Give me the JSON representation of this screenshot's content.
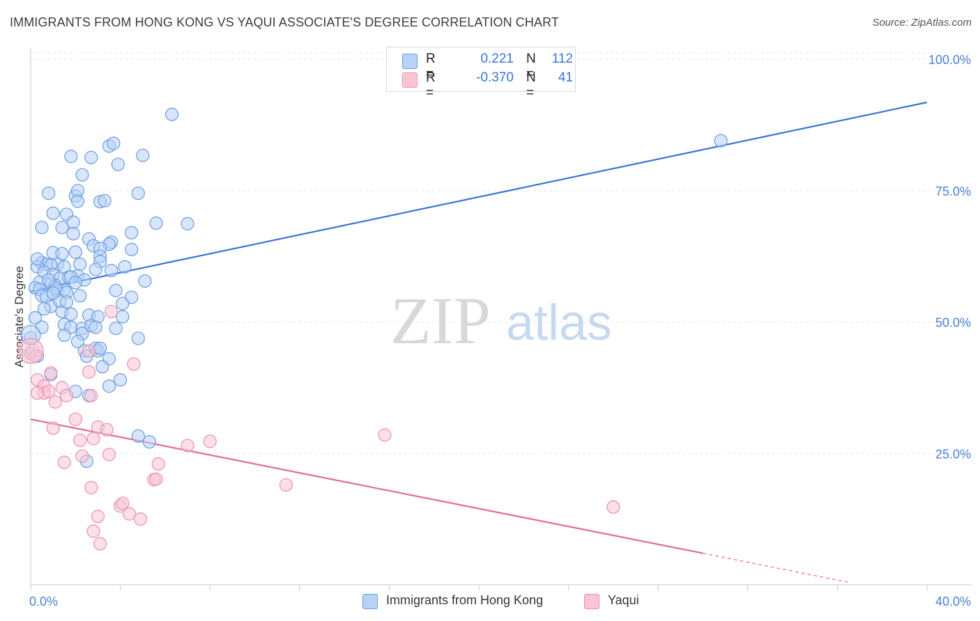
{
  "title": "IMMIGRANTS FROM HONG KONG VS YAQUI ASSOCIATE'S DEGREE CORRELATION CHART",
  "source": "Source: ZipAtlas.com",
  "watermark": {
    "zip": "ZIP",
    "atlas": "atlas"
  },
  "legend_top": {
    "rows": [
      {
        "r_label": "R =",
        "r_value": "0.221",
        "n_label": "N =",
        "n_value": "112"
      },
      {
        "r_label": "R =",
        "r_value": "-0.370",
        "n_label": "N =",
        "n_value": "41"
      }
    ]
  },
  "legend_bottom": [
    {
      "label": "Immigrants from Hong Kong"
    },
    {
      "label": "Yaqui"
    }
  ],
  "colors": {
    "blue_fill": "#b7d2f5",
    "blue_stroke": "#6b9be0",
    "blue_line": "#3a74d2",
    "pink_fill": "#f9c5d5",
    "pink_stroke": "#ea8fae",
    "pink_line": "#e2699a",
    "tick_label": "#4a7fd4",
    "grid": "#e3e3e3"
  },
  "chart_data": {
    "type": "scatter",
    "title": "IMMIGRANTS FROM HONG KONG VS YAQUI ASSOCIATE'S DEGREE CORRELATION CHART",
    "xlabel": "",
    "ylabel": "Associate's Degree",
    "xlim": [
      0,
      40
    ],
    "ylim": [
      0,
      102
    ],
    "x_tick_labels": [
      {
        "value": 0,
        "label": "0.0%"
      },
      {
        "value": 40,
        "label": "40.0%"
      }
    ],
    "y_tick_labels": [
      {
        "value": 25,
        "label": "25.0%"
      },
      {
        "value": 50,
        "label": "50.0%"
      },
      {
        "value": 75,
        "label": "75.0%"
      },
      {
        "value": 100,
        "label": "100.0%"
      }
    ],
    "x_minor_ticks": [
      0,
      4,
      8,
      12,
      16,
      20,
      24,
      28,
      32,
      36,
      40
    ],
    "grid": true,
    "series": [
      {
        "name": "Immigrants from Hong Kong",
        "r": 0.221,
        "n": 112,
        "trend": {
          "x0": 0,
          "y0": 55.8,
          "x1": 40,
          "y1": 91.8
        },
        "points": [
          [
            6.3,
            89.5
          ],
          [
            1.8,
            81.5
          ],
          [
            2.7,
            81.3
          ],
          [
            3.5,
            83.5
          ],
          [
            3.7,
            84.0
          ],
          [
            5.0,
            81.7
          ],
          [
            3.9,
            80.0
          ],
          [
            2.3,
            78.0
          ],
          [
            0.8,
            74.5
          ],
          [
            2.0,
            74.0
          ],
          [
            2.1,
            75.0
          ],
          [
            4.8,
            74.5
          ],
          [
            2.1,
            73.0
          ],
          [
            3.1,
            72.9
          ],
          [
            3.3,
            73.1
          ],
          [
            1.0,
            70.7
          ],
          [
            1.6,
            70.5
          ],
          [
            0.5,
            68.0
          ],
          [
            1.4,
            68.0
          ],
          [
            1.9,
            69.0
          ],
          [
            5.6,
            68.8
          ],
          [
            7.0,
            68.7
          ],
          [
            1.9,
            66.8
          ],
          [
            4.5,
            67.0
          ],
          [
            2.6,
            65.8
          ],
          [
            3.6,
            65.2
          ],
          [
            3.5,
            64.8
          ],
          [
            2.8,
            64.5
          ],
          [
            3.1,
            64.0
          ],
          [
            4.5,
            63.8
          ],
          [
            1.0,
            63.2
          ],
          [
            1.4,
            63.0
          ],
          [
            2.0,
            63.3
          ],
          [
            3.1,
            62.5
          ],
          [
            1.2,
            61.0
          ],
          [
            3.1,
            61.5
          ],
          [
            0.5,
            61.3
          ],
          [
            0.7,
            61.0
          ],
          [
            0.3,
            60.5
          ],
          [
            0.9,
            60.8
          ],
          [
            1.5,
            60.5
          ],
          [
            2.2,
            61.0
          ],
          [
            3.6,
            59.8
          ],
          [
            0.6,
            59.5
          ],
          [
            1.0,
            59.0
          ],
          [
            2.1,
            58.8
          ],
          [
            1.3,
            58.3
          ],
          [
            1.7,
            58.5
          ],
          [
            1.8,
            58.6
          ],
          [
            2.4,
            58.0
          ],
          [
            5.1,
            57.8
          ],
          [
            0.4,
            57.6
          ],
          [
            0.9,
            57.2
          ],
          [
            1.1,
            57.0
          ],
          [
            0.2,
            56.5
          ],
          [
            0.4,
            56.2
          ],
          [
            1.2,
            56.0
          ],
          [
            1.5,
            56.1
          ],
          [
            1.6,
            55.6
          ],
          [
            0.5,
            55.0
          ],
          [
            0.7,
            54.8
          ],
          [
            4.5,
            54.7
          ],
          [
            0.9,
            53.0
          ],
          [
            4.1,
            53.5
          ],
          [
            1.4,
            52.0
          ],
          [
            1.8,
            51.5
          ],
          [
            2.6,
            51.3
          ],
          [
            3.0,
            51.0
          ],
          [
            4.1,
            51.0
          ],
          [
            0.2,
            50.8
          ],
          [
            1.5,
            49.5
          ],
          [
            1.8,
            49.0
          ],
          [
            2.3,
            48.8
          ],
          [
            2.7,
            49.3
          ],
          [
            2.9,
            49.0
          ],
          [
            0.5,
            49.0
          ],
          [
            3.8,
            48.8
          ],
          [
            1.5,
            47.5
          ],
          [
            2.3,
            47.8
          ],
          [
            4.8,
            46.9
          ],
          [
            2.1,
            46.3
          ],
          [
            0.0,
            47.0
          ],
          [
            2.9,
            45.0
          ],
          [
            3.0,
            44.5
          ],
          [
            3.1,
            45.0
          ],
          [
            2.4,
            44.5
          ],
          [
            2.5,
            43.5
          ],
          [
            3.5,
            43.0
          ],
          [
            3.2,
            41.5
          ],
          [
            0.9,
            40.0
          ],
          [
            4.0,
            39.0
          ],
          [
            3.5,
            37.8
          ],
          [
            2.0,
            36.8
          ],
          [
            2.6,
            36.0
          ],
          [
            0.0,
            44.0
          ],
          [
            0.3,
            43.5
          ],
          [
            4.8,
            28.3
          ],
          [
            5.3,
            27.2
          ],
          [
            2.5,
            23.5
          ],
          [
            30.8,
            84.5
          ],
          [
            1.1,
            56.5
          ],
          [
            0.6,
            52.5
          ],
          [
            2.2,
            55.0
          ],
          [
            3.8,
            56.0
          ],
          [
            1.3,
            54.0
          ],
          [
            0.8,
            58.0
          ],
          [
            2.9,
            60.0
          ],
          [
            1.6,
            53.8
          ],
          [
            4.2,
            60.5
          ],
          [
            0.3,
            62.0
          ],
          [
            2.0,
            57.5
          ],
          [
            1.0,
            55.5
          ]
        ]
      },
      {
        "name": "Yaqui",
        "r": -0.37,
        "n": 41,
        "trend": {
          "x0": 0,
          "y0": 31.5,
          "x1": 30.0,
          "y1": 6.0,
          "dash_to_x": 36.5
        },
        "points": [
          [
            0.1,
            44.5
          ],
          [
            0.2,
            43.5
          ],
          [
            2.6,
            44.5
          ],
          [
            3.6,
            52.0
          ],
          [
            4.6,
            42.0
          ],
          [
            2.6,
            40.5
          ],
          [
            0.9,
            40.3
          ],
          [
            0.3,
            39.0
          ],
          [
            0.6,
            37.8
          ],
          [
            1.4,
            37.5
          ],
          [
            0.6,
            36.5
          ],
          [
            0.8,
            36.8
          ],
          [
            1.6,
            36.0
          ],
          [
            2.7,
            36.0
          ],
          [
            0.3,
            36.5
          ],
          [
            1.1,
            34.8
          ],
          [
            2.0,
            31.5
          ],
          [
            3.0,
            30.0
          ],
          [
            3.4,
            29.5
          ],
          [
            1.0,
            29.8
          ],
          [
            2.2,
            27.5
          ],
          [
            2.8,
            27.8
          ],
          [
            7.0,
            26.5
          ],
          [
            8.0,
            27.3
          ],
          [
            15.8,
            28.5
          ],
          [
            3.5,
            24.8
          ],
          [
            2.3,
            24.5
          ],
          [
            1.5,
            23.3
          ],
          [
            5.7,
            23.0
          ],
          [
            5.5,
            20.0
          ],
          [
            5.6,
            20.1
          ],
          [
            11.4,
            19.0
          ],
          [
            2.7,
            18.5
          ],
          [
            4.0,
            15.0
          ],
          [
            4.1,
            15.5
          ],
          [
            26.0,
            14.8
          ],
          [
            4.4,
            13.5
          ],
          [
            3.0,
            13.0
          ],
          [
            4.9,
            12.5
          ],
          [
            2.8,
            10.2
          ],
          [
            3.1,
            7.8
          ]
        ]
      }
    ]
  }
}
